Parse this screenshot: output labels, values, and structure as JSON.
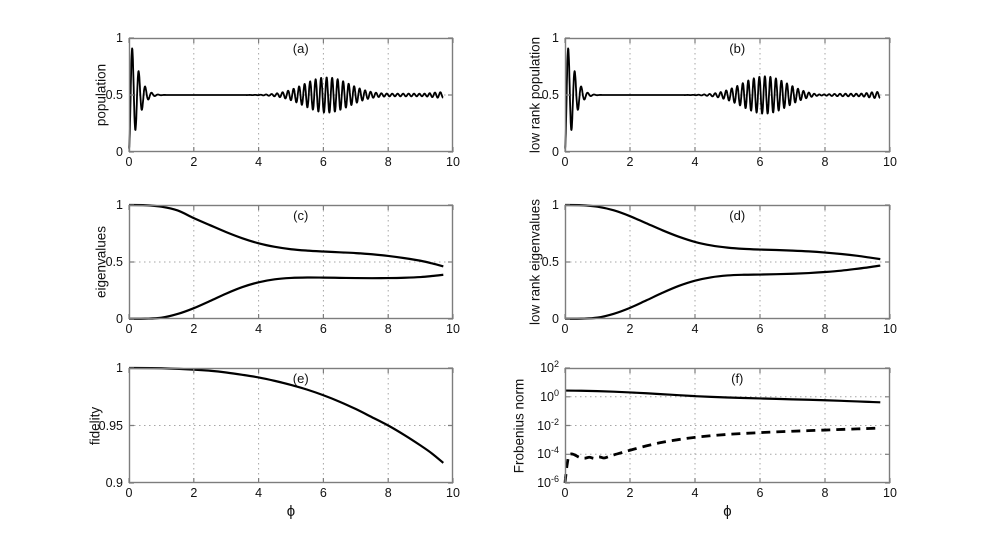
{
  "figure": {
    "background": "#ffffff",
    "axis_color": "#7d7d7d",
    "grid_color": "#a6a6a6",
    "curve_color": "#000000",
    "text_color": "#111111"
  },
  "chart_data": [
    {
      "type": "line",
      "panel_label": "(a)",
      "ylabel": "population",
      "xlabel": "",
      "xlim": [
        0,
        10
      ],
      "ylim": [
        0,
        1
      ],
      "yscale": "linear",
      "xticks": [
        {
          "v": 0,
          "label": "0"
        },
        {
          "v": 2,
          "label": "2"
        },
        {
          "v": 4,
          "label": "4"
        },
        {
          "v": 6,
          "label": "6"
        },
        {
          "v": 8,
          "label": "8"
        },
        {
          "v": 10,
          "label": "10"
        }
      ],
      "yticks": [
        {
          "v": 0,
          "label": "0"
        },
        {
          "v": 0.5,
          "label": "0.5"
        },
        {
          "v": 1,
          "label": "1"
        }
      ],
      "grid_x": [
        2,
        4,
        6,
        8
      ],
      "grid_y": [
        0.5
      ],
      "series": [
        {
          "name": "population",
          "style": "solid",
          "width": 1.8,
          "model": {
            "type": "collapse_revival",
            "base": 0.5,
            "x_start": 0,
            "x_end": 9.7,
            "step": 0.008,
            "carrier_period": 0.2,
            "collapse_amp": 0.47,
            "collapse_tau": 0.34,
            "collapse_power": 1.6,
            "revivals": [
              {
                "center": 6.1,
                "amp": 0.155,
                "sigma": 1.0,
                "period": 0.17
              },
              {
                "center": 8.8,
                "amp": 0.012,
                "sigma": 1.5,
                "period": 0.17
              },
              {
                "center": 9.6,
                "amp": 0.025,
                "sigma": 0.45,
                "period": 0.17
              }
            ]
          }
        }
      ]
    },
    {
      "type": "line",
      "panel_label": "(b)",
      "ylabel": "low rank population",
      "xlabel": "",
      "xlim": [
        0,
        10
      ],
      "ylim": [
        0,
        1
      ],
      "yscale": "linear",
      "xticks": [
        {
          "v": 0,
          "label": "0"
        },
        {
          "v": 2,
          "label": "2"
        },
        {
          "v": 4,
          "label": "4"
        },
        {
          "v": 6,
          "label": "6"
        },
        {
          "v": 8,
          "label": "8"
        },
        {
          "v": 10,
          "label": "10"
        }
      ],
      "yticks": [
        {
          "v": 0,
          "label": "0"
        },
        {
          "v": 0.5,
          "label": "0.5"
        },
        {
          "v": 1,
          "label": "1"
        }
      ],
      "grid_x": [
        2,
        4,
        6,
        8
      ],
      "grid_y": [
        0.5
      ],
      "series": [
        {
          "name": "low-rank-population",
          "style": "solid",
          "width": 1.8,
          "model": {
            "type": "collapse_revival",
            "base": 0.5,
            "x_start": 0,
            "x_end": 9.7,
            "step": 0.008,
            "carrier_period": 0.2,
            "collapse_amp": 0.47,
            "collapse_tau": 0.34,
            "collapse_power": 1.6,
            "revivals": [
              {
                "center": 6.15,
                "amp": 0.165,
                "sigma": 1.0,
                "period": 0.17
              },
              {
                "center": 8.8,
                "amp": 0.012,
                "sigma": 1.5,
                "period": 0.17
              },
              {
                "center": 9.6,
                "amp": 0.028,
                "sigma": 0.45,
                "period": 0.17
              }
            ]
          }
        }
      ]
    },
    {
      "type": "line",
      "panel_label": "(c)",
      "ylabel": "eigenvalues",
      "xlabel": "",
      "xlim": [
        0,
        10
      ],
      "ylim": [
        0,
        1
      ],
      "yscale": "linear",
      "xticks": [
        {
          "v": 0,
          "label": "0"
        },
        {
          "v": 2,
          "label": "2"
        },
        {
          "v": 4,
          "label": "4"
        },
        {
          "v": 6,
          "label": "6"
        },
        {
          "v": 8,
          "label": "8"
        },
        {
          "v": 10,
          "label": "10"
        }
      ],
      "yticks": [
        {
          "v": 0,
          "label": "0"
        },
        {
          "v": 0.5,
          "label": "0.5"
        },
        {
          "v": 1,
          "label": "1"
        }
      ],
      "grid_x": [
        2,
        4,
        6,
        8
      ],
      "grid_y": [
        0.5
      ],
      "series": [
        {
          "name": "eigenvalue-upper",
          "style": "solid",
          "width": 2.2,
          "points": [
            [
              0,
              1
            ],
            [
              0.5,
              0.998
            ],
            [
              1,
              0.985
            ],
            [
              1.5,
              0.952
            ],
            [
              2,
              0.885
            ],
            [
              2.5,
              0.823
            ],
            [
              3,
              0.762
            ],
            [
              3.5,
              0.708
            ],
            [
              4,
              0.664
            ],
            [
              4.5,
              0.633
            ],
            [
              5,
              0.612
            ],
            [
              5.5,
              0.6
            ],
            [
              6,
              0.592
            ],
            [
              6.5,
              0.585
            ],
            [
              7,
              0.578
            ],
            [
              7.5,
              0.568
            ],
            [
              8,
              0.553
            ],
            [
              8.5,
              0.534
            ],
            [
              9,
              0.511
            ],
            [
              9.35,
              0.488
            ],
            [
              9.7,
              0.461
            ]
          ]
        },
        {
          "name": "eigenvalue-lower",
          "style": "solid",
          "width": 2.2,
          "points": [
            [
              0,
              0.002
            ],
            [
              0.5,
              0.003
            ],
            [
              1,
              0.011
            ],
            [
              1.5,
              0.044
            ],
            [
              2,
              0.095
            ],
            [
              2.5,
              0.158
            ],
            [
              3,
              0.223
            ],
            [
              3.5,
              0.28
            ],
            [
              4,
              0.322
            ],
            [
              4.5,
              0.348
            ],
            [
              5,
              0.36
            ],
            [
              5.5,
              0.364
            ],
            [
              6,
              0.363
            ],
            [
              6.5,
              0.361
            ],
            [
              7,
              0.359
            ],
            [
              7.5,
              0.358
            ],
            [
              8,
              0.359
            ],
            [
              8.5,
              0.362
            ],
            [
              9,
              0.368
            ],
            [
              9.35,
              0.377
            ],
            [
              9.7,
              0.388
            ]
          ]
        }
      ]
    },
    {
      "type": "line",
      "panel_label": "(d)",
      "ylabel": "low rank eigenvalues",
      "xlabel": "",
      "xlim": [
        0,
        10
      ],
      "ylim": [
        0,
        1
      ],
      "yscale": "linear",
      "xticks": [
        {
          "v": 0,
          "label": "0"
        },
        {
          "v": 2,
          "label": "2"
        },
        {
          "v": 4,
          "label": "4"
        },
        {
          "v": 6,
          "label": "6"
        },
        {
          "v": 8,
          "label": "8"
        },
        {
          "v": 10,
          "label": "10"
        }
      ],
      "yticks": [
        {
          "v": 0,
          "label": "0"
        },
        {
          "v": 0.5,
          "label": "0.5"
        },
        {
          "v": 1,
          "label": "1"
        }
      ],
      "grid_x": [
        2,
        4,
        6,
        8
      ],
      "grid_y": [
        0.5
      ],
      "series": [
        {
          "name": "low-rank-eigenvalue-upper",
          "style": "solid",
          "width": 2.2,
          "points": [
            [
              0,
              1
            ],
            [
              0.5,
              0.998
            ],
            [
              1,
              0.985
            ],
            [
              1.5,
              0.953
            ],
            [
              2,
              0.902
            ],
            [
              2.5,
              0.84
            ],
            [
              3,
              0.778
            ],
            [
              3.5,
              0.722
            ],
            [
              4,
              0.676
            ],
            [
              4.5,
              0.645
            ],
            [
              5,
              0.626
            ],
            [
              5.5,
              0.615
            ],
            [
              6,
              0.609
            ],
            [
              6.5,
              0.605
            ],
            [
              7,
              0.6
            ],
            [
              7.5,
              0.593
            ],
            [
              8,
              0.583
            ],
            [
              8.5,
              0.57
            ],
            [
              9,
              0.554
            ],
            [
              9.35,
              0.54
            ],
            [
              9.7,
              0.525
            ]
          ]
        },
        {
          "name": "low-rank-eigenvalue-lower",
          "style": "solid",
          "width": 2.2,
          "points": [
            [
              0,
              0.002
            ],
            [
              0.5,
              0.003
            ],
            [
              1,
              0.012
            ],
            [
              1.5,
              0.046
            ],
            [
              2,
              0.098
            ],
            [
              2.5,
              0.163
            ],
            [
              3,
              0.23
            ],
            [
              3.5,
              0.29
            ],
            [
              4,
              0.336
            ],
            [
              4.5,
              0.366
            ],
            [
              5,
              0.382
            ],
            [
              5.5,
              0.388
            ],
            [
              6,
              0.39
            ],
            [
              6.5,
              0.393
            ],
            [
              7,
              0.397
            ],
            [
              7.5,
              0.403
            ],
            [
              8,
              0.412
            ],
            [
              8.5,
              0.424
            ],
            [
              9,
              0.441
            ],
            [
              9.35,
              0.454
            ],
            [
              9.7,
              0.469
            ]
          ]
        }
      ]
    },
    {
      "type": "line",
      "panel_label": "(e)",
      "ylabel": "fidelity",
      "xlabel": "ϕ",
      "xlim": [
        0,
        10
      ],
      "ylim": [
        0.9,
        1
      ],
      "yscale": "linear",
      "xticks": [
        {
          "v": 0,
          "label": "0"
        },
        {
          "v": 2,
          "label": "2"
        },
        {
          "v": 4,
          "label": "4"
        },
        {
          "v": 6,
          "label": "6"
        },
        {
          "v": 8,
          "label": "8"
        },
        {
          "v": 10,
          "label": "10"
        }
      ],
      "yticks": [
        {
          "v": 0.9,
          "label": "0.9"
        },
        {
          "v": 0.95,
          "label": "0.95"
        },
        {
          "v": 1,
          "label": "1"
        }
      ],
      "grid_x": [
        2,
        4,
        6,
        8
      ],
      "grid_y": [
        0.95
      ],
      "series": [
        {
          "name": "fidelity",
          "style": "solid",
          "width": 2.2,
          "points": [
            [
              0,
              1
            ],
            [
              1,
              0.9998
            ],
            [
              2,
              0.9986
            ],
            [
              2.5,
              0.9976
            ],
            [
              3,
              0.9961
            ],
            [
              3.5,
              0.9941
            ],
            [
              4,
              0.9918
            ],
            [
              4.5,
              0.9888
            ],
            [
              5,
              0.9853
            ],
            [
              5.5,
              0.9812
            ],
            [
              6,
              0.9763
            ],
            [
              6.5,
              0.9707
            ],
            [
              7,
              0.9643
            ],
            [
              7.5,
              0.9572
            ],
            [
              8,
              0.95
            ],
            [
              8.5,
              0.9417
            ],
            [
              9,
              0.9326
            ],
            [
              9.35,
              0.9257
            ],
            [
              9.7,
              0.9175
            ]
          ]
        }
      ]
    },
    {
      "type": "line",
      "panel_label": "(f)",
      "ylabel": "Frobenius norm",
      "xlabel": "ϕ",
      "xlim": [
        0,
        10
      ],
      "ylim_exp": [
        -6,
        2
      ],
      "yscale": "log",
      "xticks": [
        {
          "v": 0,
          "label": "0"
        },
        {
          "v": 2,
          "label": "2"
        },
        {
          "v": 4,
          "label": "4"
        },
        {
          "v": 6,
          "label": "6"
        },
        {
          "v": 8,
          "label": "8"
        },
        {
          "v": 10,
          "label": "10"
        }
      ],
      "yticks": [
        {
          "v": 100,
          "label": "10",
          "sup": "2"
        },
        {
          "v": 1,
          "label": "10",
          "sup": "0"
        },
        {
          "v": 0.01,
          "label": "10",
          "sup": "-2"
        },
        {
          "v": 0.0001,
          "label": "10",
          "sup": "-4"
        },
        {
          "v": 1e-06,
          "label": "10",
          "sup": "-6"
        }
      ],
      "grid_x": [
        2,
        4,
        6,
        8
      ],
      "grid_y": [
        1,
        0.01,
        0.0001
      ],
      "series": [
        {
          "name": "frobenius-norm-solid",
          "style": "solid",
          "width": 2.2,
          "points": [
            [
              0,
              2.7
            ],
            [
              0.5,
              2.6
            ],
            [
              1,
              2.45
            ],
            [
              1.5,
              2.25
            ],
            [
              2,
              2.0
            ],
            [
              2.5,
              1.75
            ],
            [
              3,
              1.5
            ],
            [
              3.5,
              1.28
            ],
            [
              4,
              1.1
            ],
            [
              4.5,
              0.98
            ],
            [
              5,
              0.89
            ],
            [
              5.5,
              0.82
            ],
            [
              6,
              0.76
            ],
            [
              6.5,
              0.71
            ],
            [
              7,
              0.66
            ],
            [
              7.5,
              0.62
            ],
            [
              8,
              0.57
            ],
            [
              8.5,
              0.52
            ],
            [
              9,
              0.47
            ],
            [
              9.35,
              0.44
            ],
            [
              9.7,
              0.41
            ]
          ]
        },
        {
          "name": "frobenius-norm-dashed",
          "style": "dashed",
          "dash": [
            9,
            6
          ],
          "width": 2.8,
          "points": [
            [
              0,
              1e-06
            ],
            [
              0.06,
              1.5e-05
            ],
            [
              0.12,
              8e-05
            ],
            [
              0.2,
              0.000105
            ],
            [
              0.3,
              9e-05
            ],
            [
              0.45,
              6e-05
            ],
            [
              0.6,
              5.3e-05
            ],
            [
              0.75,
              6.2e-05
            ],
            [
              0.9,
              5.2e-05
            ],
            [
              1.05,
              6.5e-05
            ],
            [
              1.2,
              5.5e-05
            ],
            [
              1.35,
              7e-05
            ],
            [
              1.5,
              9e-05
            ],
            [
              1.75,
              0.00013
            ],
            [
              2,
              0.00019
            ],
            [
              2.5,
              0.00038
            ],
            [
              3,
              0.00068
            ],
            [
              3.5,
              0.00105
            ],
            [
              4,
              0.0015
            ],
            [
              4.5,
              0.00195
            ],
            [
              5,
              0.0024
            ],
            [
              5.5,
              0.0028
            ],
            [
              6,
              0.0032
            ],
            [
              6.5,
              0.0036
            ],
            [
              7,
              0.004
            ],
            [
              7.5,
              0.0044
            ],
            [
              8,
              0.0048
            ],
            [
              8.5,
              0.0053
            ],
            [
              9,
              0.0058
            ],
            [
              9.35,
              0.0062
            ],
            [
              9.7,
              0.0066
            ]
          ]
        }
      ]
    }
  ]
}
